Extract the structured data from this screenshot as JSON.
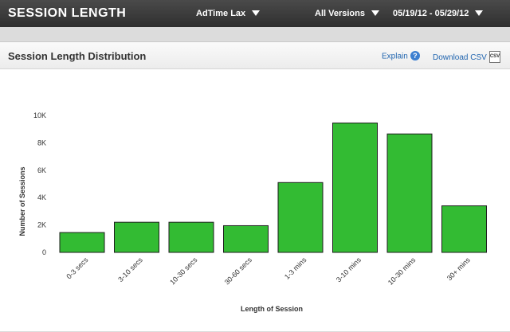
{
  "header": {
    "title": "SESSION LENGTH",
    "app_dropdown": "AdTime Lax",
    "version_dropdown": "All Versions",
    "date_range": "05/19/12 - 05/29/12"
  },
  "panel": {
    "title": "Session Length Distribution",
    "explain_label": "Explain",
    "download_label": "Download CSV",
    "csv_icon_text": "CSV"
  },
  "colors": {
    "bar": "#33bb33",
    "bar_stroke": "#1e1e1e"
  },
  "chart_data": {
    "type": "bar",
    "categories": [
      "0-3 secs",
      "3-10 secs",
      "10-30 secs",
      "30-60 secs",
      "1-3 mins",
      "3-10 mins",
      "10-30 mins",
      "30+ mins"
    ],
    "values": [
      1450,
      2200,
      2200,
      1950,
      5100,
      9450,
      8650,
      3400
    ],
    "xlabel": "Length of Session",
    "ylabel": "Number of Sessions",
    "ylim": [
      0,
      10000
    ],
    "yticks": [
      "0",
      "2K",
      "4K",
      "6K",
      "8K",
      "10K"
    ],
    "grid": false
  }
}
